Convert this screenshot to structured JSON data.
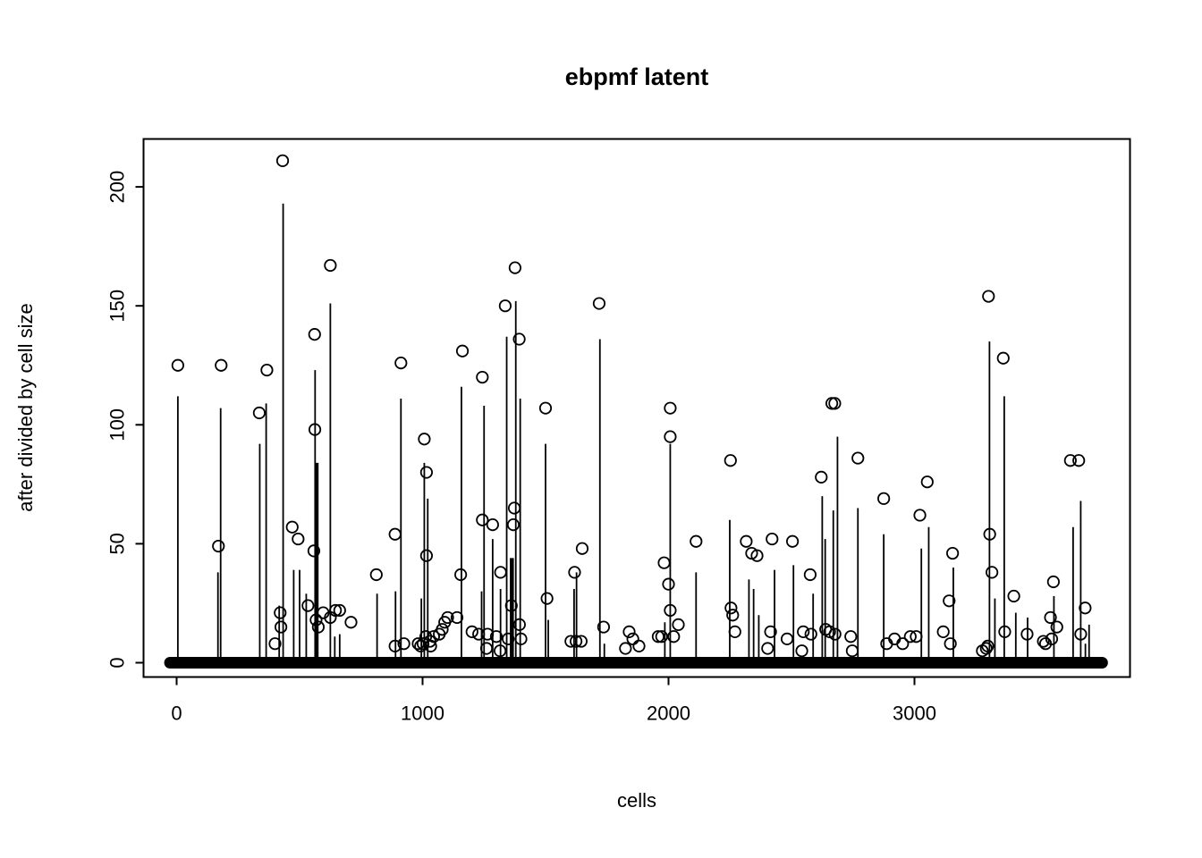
{
  "chart_data": {
    "type": "stem-scatter",
    "title": "ebpmf latent",
    "xlabel": "cells",
    "ylabel": "after divided by cell size",
    "x_ticks": [
      0,
      1000,
      2000,
      3000
    ],
    "y_ticks": [
      0,
      50,
      100,
      150,
      200
    ],
    "xlim": [
      -140,
      3890
    ],
    "ylim": [
      -6,
      220
    ],
    "grid": false,
    "legend": "none",
    "colors": {
      "foreground": "#000000",
      "background": "#ffffff"
    },
    "baseline": {
      "y": 0,
      "x_start": -27,
      "x_end": 3763,
      "thickness_px": 13
    },
    "stems": [
      [
        5,
        112
      ],
      [
        168,
        38
      ],
      [
        179,
        107
      ],
      [
        338,
        92
      ],
      [
        364,
        109
      ],
      [
        417,
        24
      ],
      [
        433,
        193
      ],
      [
        476,
        39
      ],
      [
        500,
        39
      ],
      [
        527,
        29
      ],
      [
        563,
        123
      ],
      [
        573,
        33
      ],
      [
        625,
        151
      ],
      [
        643,
        11
      ],
      [
        663,
        12
      ],
      [
        815,
        29
      ],
      [
        890,
        30
      ],
      [
        912,
        111
      ],
      [
        995,
        27
      ],
      [
        1007,
        84
      ],
      [
        1021,
        69
      ],
      [
        1158,
        116
      ],
      [
        1240,
        30
      ],
      [
        1250,
        108
      ],
      [
        1285,
        52
      ],
      [
        1317,
        31
      ],
      [
        1342,
        137
      ],
      [
        1379,
        152
      ],
      [
        1397,
        111
      ],
      [
        1500,
        92
      ],
      [
        1511,
        18
      ],
      [
        1616,
        31
      ],
      [
        1626,
        38
      ],
      [
        1721,
        136
      ],
      [
        1739,
        8
      ],
      [
        1985,
        17
      ],
      [
        2007,
        92
      ],
      [
        2112,
        38
      ],
      [
        2249,
        60
      ],
      [
        2327,
        35
      ],
      [
        2346,
        31
      ],
      [
        2367,
        20
      ],
      [
        2431,
        39
      ],
      [
        2508,
        41
      ],
      [
        2588,
        29
      ],
      [
        2625,
        70
      ],
      [
        2637,
        52
      ],
      [
        2670,
        64
      ],
      [
        2687,
        95
      ],
      [
        2770,
        65
      ],
      [
        2875,
        54
      ],
      [
        3028,
        48
      ],
      [
        3058,
        57
      ],
      [
        3158,
        40
      ],
      [
        3305,
        135
      ],
      [
        3327,
        27
      ],
      [
        3365,
        112
      ],
      [
        3412,
        21
      ],
      [
        3460,
        19
      ],
      [
        3567,
        28
      ],
      [
        3645,
        57
      ],
      [
        3676,
        68
      ],
      [
        3695,
        8
      ],
      [
        3710,
        16
      ]
    ],
    "thick_stems": [
      [
        569,
        84
      ],
      [
        1363,
        44
      ]
    ],
    "points": [
      [
        5,
        125
      ],
      [
        170,
        49
      ],
      [
        181,
        125
      ],
      [
        336,
        105
      ],
      [
        367,
        123
      ],
      [
        400,
        8
      ],
      [
        421,
        21
      ],
      [
        424,
        15
      ],
      [
        431,
        211
      ],
      [
        470,
        57
      ],
      [
        494,
        52
      ],
      [
        534,
        24
      ],
      [
        558,
        47
      ],
      [
        561,
        138
      ],
      [
        562,
        98
      ],
      [
        567,
        18
      ],
      [
        576,
        15
      ],
      [
        596,
        21
      ],
      [
        625,
        19
      ],
      [
        625,
        167
      ],
      [
        646,
        22
      ],
      [
        663,
        22
      ],
      [
        709,
        17
      ],
      [
        812,
        37
      ],
      [
        888,
        54
      ],
      [
        888,
        7
      ],
      [
        912,
        126
      ],
      [
        924,
        8
      ],
      [
        982,
        8
      ],
      [
        992,
        7
      ],
      [
        1002,
        8
      ],
      [
        1007,
        94
      ],
      [
        1013,
        11
      ],
      [
        1016,
        80
      ],
      [
        1016,
        45
      ],
      [
        1030,
        9
      ],
      [
        1033,
        7
      ],
      [
        1045,
        11
      ],
      [
        1068,
        12
      ],
      [
        1080,
        14
      ],
      [
        1090,
        17
      ],
      [
        1102,
        19
      ],
      [
        1140,
        19
      ],
      [
        1155,
        37
      ],
      [
        1162,
        131
      ],
      [
        1201,
        13
      ],
      [
        1228,
        12
      ],
      [
        1243,
        120
      ],
      [
        1243,
        60
      ],
      [
        1260,
        6
      ],
      [
        1264,
        12
      ],
      [
        1285,
        58
      ],
      [
        1300,
        11
      ],
      [
        1315,
        5
      ],
      [
        1317,
        38
      ],
      [
        1336,
        150
      ],
      [
        1348,
        10
      ],
      [
        1361,
        24
      ],
      [
        1369,
        58
      ],
      [
        1376,
        166
      ],
      [
        1373,
        65
      ],
      [
        1393,
        136
      ],
      [
        1394,
        16
      ],
      [
        1400,
        10
      ],
      [
        1500,
        107
      ],
      [
        1506,
        27
      ],
      [
        1603,
        9
      ],
      [
        1618,
        38
      ],
      [
        1624,
        9
      ],
      [
        1645,
        9
      ],
      [
        1649,
        48
      ],
      [
        1718,
        151
      ],
      [
        1736,
        15
      ],
      [
        1825,
        6
      ],
      [
        1840,
        13
      ],
      [
        1855,
        10
      ],
      [
        1880,
        7
      ],
      [
        1958,
        11
      ],
      [
        1972,
        11
      ],
      [
        1982,
        42
      ],
      [
        2000,
        33
      ],
      [
        2007,
        107
      ],
      [
        2007,
        95
      ],
      [
        2007,
        22
      ],
      [
        2021,
        11
      ],
      [
        2040,
        16
      ],
      [
        2112,
        51
      ],
      [
        2252,
        85
      ],
      [
        2254,
        23
      ],
      [
        2261,
        20
      ],
      [
        2270,
        13
      ],
      [
        2316,
        51
      ],
      [
        2338,
        46
      ],
      [
        2360,
        45
      ],
      [
        2403,
        6
      ],
      [
        2415,
        13
      ],
      [
        2421,
        52
      ],
      [
        2482,
        10
      ],
      [
        2504,
        51
      ],
      [
        2542,
        5
      ],
      [
        2548,
        13
      ],
      [
        2576,
        37
      ],
      [
        2579,
        12
      ],
      [
        2621,
        78
      ],
      [
        2639,
        14
      ],
      [
        2655,
        13
      ],
      [
        2664,
        109
      ],
      [
        2676,
        109
      ],
      [
        2677,
        12
      ],
      [
        2741,
        11
      ],
      [
        2747,
        5
      ],
      [
        2770,
        86
      ],
      [
        2875,
        69
      ],
      [
        2887,
        8
      ],
      [
        2919,
        10
      ],
      [
        2952,
        8
      ],
      [
        2983,
        11
      ],
      [
        3007,
        11
      ],
      [
        3022,
        62
      ],
      [
        3052,
        76
      ],
      [
        3117,
        13
      ],
      [
        3141,
        26
      ],
      [
        3146,
        8
      ],
      [
        3155,
        46
      ],
      [
        3276,
        5
      ],
      [
        3292,
        6
      ],
      [
        3298,
        7
      ],
      [
        3301,
        154
      ],
      [
        3306,
        54
      ],
      [
        3315,
        38
      ],
      [
        3361,
        128
      ],
      [
        3367,
        13
      ],
      [
        3404,
        28
      ],
      [
        3458,
        12
      ],
      [
        3524,
        9
      ],
      [
        3533,
        8
      ],
      [
        3553,
        19
      ],
      [
        3558,
        10
      ],
      [
        3565,
        34
      ],
      [
        3579,
        15
      ],
      [
        3634,
        85
      ],
      [
        3668,
        85
      ],
      [
        3676,
        12
      ],
      [
        3694,
        23
      ]
    ]
  }
}
